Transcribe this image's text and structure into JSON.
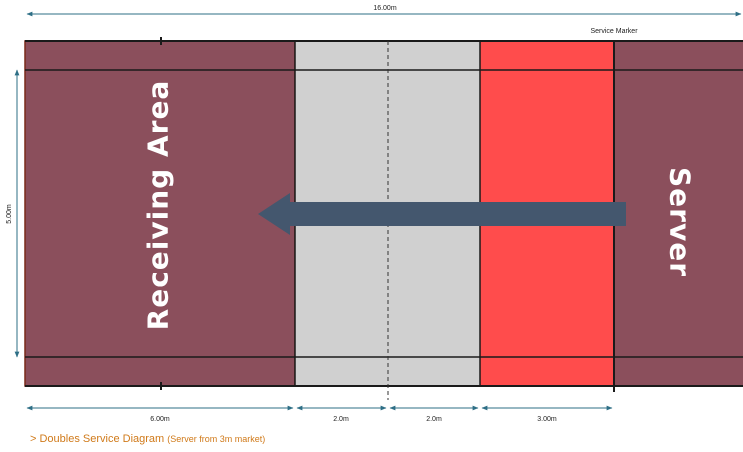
{
  "diagram": {
    "total_length_label": "16.00m",
    "width_label": "5.00m",
    "service_marker_label": "Service Marker",
    "receiving_area_label": "Receiving Area",
    "server_label": "Server",
    "segments": [
      {
        "label": "6.00m"
      },
      {
        "label": "2.0m"
      },
      {
        "label": "2.0m"
      },
      {
        "label": "3.00m"
      }
    ],
    "colors": {
      "court": "#8b4f5c",
      "neutral_zone": "#d0d0d0",
      "service_zone": "#ff4c4c",
      "arrow": "#44576e",
      "dimension_line": "#2e6f86",
      "boundary": "#1a1a1a"
    }
  },
  "caption": {
    "prefix": "> Doubles Service Diagram",
    "detail": "(Server from 3m market)"
  }
}
